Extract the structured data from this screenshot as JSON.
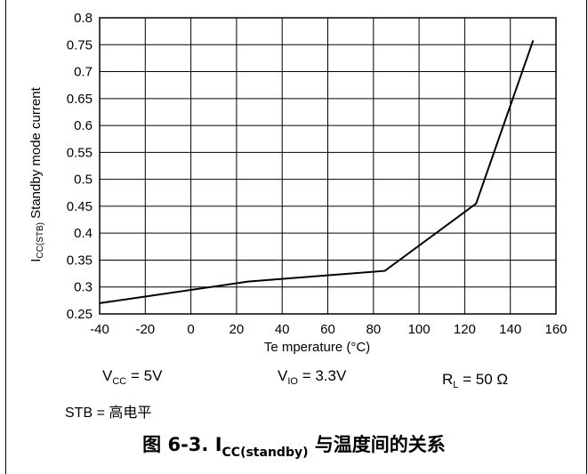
{
  "chart_data": {
    "type": "line",
    "xlabel": "Te mperature (°C)",
    "ylabel_main": "I",
    "ylabel_sub": "CC(STB)",
    "ylabel_rest": " Standby mode current",
    "xlim": [
      -40,
      160
    ],
    "ylim": [
      0.25,
      0.8
    ],
    "x_ticks": [
      "-40",
      "-20",
      "0",
      "20",
      "40",
      "60",
      "80",
      "100",
      "120",
      "140",
      "160"
    ],
    "y_ticks": [
      "0.25",
      "0.3",
      "0.35",
      "0.4",
      "0.45",
      "0.5",
      "0.55",
      "0.6",
      "0.65",
      "0.7",
      "0.75",
      "0.8"
    ],
    "grid": true,
    "series": [
      {
        "x": [
          -40,
          25,
          85,
          125,
          150
        ],
        "y": [
          0.27,
          0.31,
          0.33,
          0.455,
          0.758
        ]
      }
    ]
  },
  "conditions": {
    "vcc_main": "V",
    "vcc_sub": "CC",
    "vcc_rest": " = 5V",
    "vio_main": "V",
    "vio_sub": "IO",
    "vio_rest": " = 3.3V",
    "rl_main": "R",
    "rl_sub": "L",
    "rl_rest": " = 50 Ω",
    "stb": "STB = 高电平"
  },
  "caption": {
    "prefix": "图 6-3. I",
    "sub": "CC(standby)",
    "suffix": " 与温度间的关系"
  }
}
